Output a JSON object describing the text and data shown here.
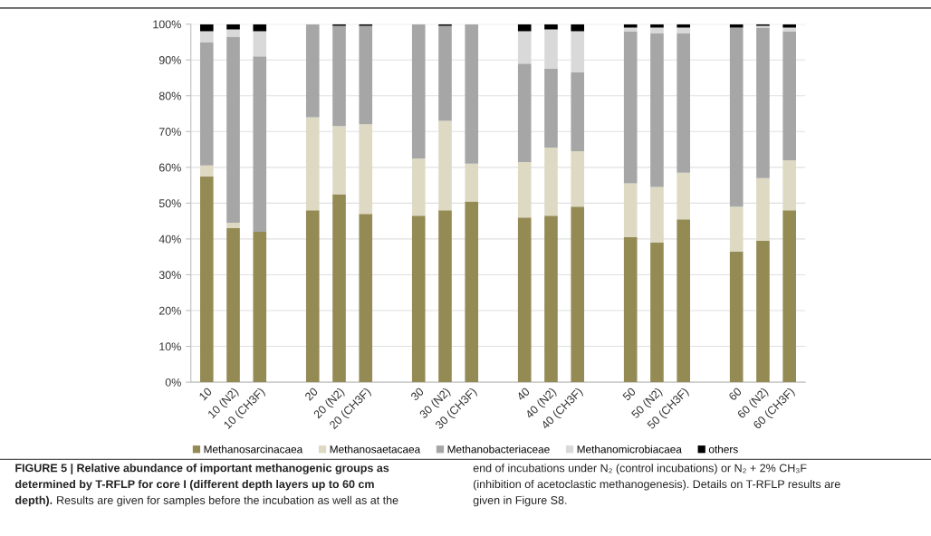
{
  "chart_data": {
    "type": "bar",
    "stacked": true,
    "categories": [
      "10",
      "10 (N2)",
      "10 (CH3F)",
      null,
      "20",
      "20 (N2)",
      "20 (CH3F)",
      null,
      "30",
      "30 (N2)",
      "30 (CH3F)",
      null,
      "40",
      "40 (N2)",
      "40 (CH3F)",
      null,
      "50",
      "50 (N2)",
      "50 (CH3F)",
      null,
      "60",
      "60 (N2)",
      "60 (CH3F)"
    ],
    "series": [
      {
        "name": "Methanosarcinacaea",
        "color": "#948a54",
        "values": [
          57.5,
          43,
          42,
          null,
          48,
          52.5,
          47,
          null,
          46.5,
          48,
          50.5,
          null,
          46,
          46.5,
          49,
          null,
          40.5,
          39,
          45.5,
          null,
          36.5,
          39.5,
          48
        ]
      },
      {
        "name": "Methanosaetacaea",
        "color": "#ddd9c3",
        "values": [
          3,
          1.5,
          0,
          null,
          26,
          19,
          25,
          null,
          16,
          25,
          10.5,
          null,
          15.5,
          19,
          15.5,
          null,
          15,
          15.5,
          13,
          null,
          12.5,
          17.5,
          14
        ]
      },
      {
        "name": "Methanobacteriaceae",
        "color": "#a6a6a6",
        "values": [
          34.5,
          52,
          49,
          null,
          26,
          28,
          27.5,
          null,
          37.5,
          26.5,
          39,
          null,
          27.5,
          22,
          22,
          null,
          42.5,
          43,
          39,
          null,
          50,
          42,
          36
        ]
      },
      {
        "name": "Methanomicrobiacaea",
        "color": "#d9d9d9",
        "values": [
          3,
          2,
          7,
          null,
          0,
          0,
          0,
          null,
          0,
          0,
          0,
          null,
          9,
          11,
          11.5,
          null,
          1,
          1.5,
          1.5,
          null,
          0,
          0.5,
          1
        ]
      },
      {
        "name": "others",
        "color": "#000000",
        "values": [
          2,
          1.5,
          2,
          null,
          0,
          0.5,
          0.5,
          null,
          0,
          0.5,
          0,
          null,
          2,
          1.5,
          2,
          null,
          1,
          1,
          1,
          null,
          1,
          0.5,
          1
        ]
      }
    ],
    "ylim": [
      0,
      100
    ],
    "yticks": [
      {
        "value": 0,
        "label": "0%"
      },
      {
        "value": 10,
        "label": "10%"
      },
      {
        "value": 20,
        "label": "20%"
      },
      {
        "value": 30,
        "label": "30%"
      },
      {
        "value": 40,
        "label": "40%"
      },
      {
        "value": 50,
        "label": "50%"
      },
      {
        "value": 60,
        "label": "60%"
      },
      {
        "value": 70,
        "label": "70%"
      },
      {
        "value": 80,
        "label": "80%"
      },
      {
        "value": 90,
        "label": "90%"
      },
      {
        "value": 100,
        "label": "100%"
      }
    ],
    "grid": "y",
    "legend": "bottom",
    "annotations": [
      "FIGURE 5 | Relative abundance of important methanogenic groups as",
      "determined by T-RFLP for core I (different depth layers up to 60 cm",
      "depth).",
      "Results are given for samples before the incubation as well as at the",
      "end of incubations under N₂ (control incubations) or N₂ + 2% CH₃F",
      "(inhibition of acetoclastic methanogenesis). Details on T-RFLP results are",
      "given in Figure S8."
    ]
  }
}
